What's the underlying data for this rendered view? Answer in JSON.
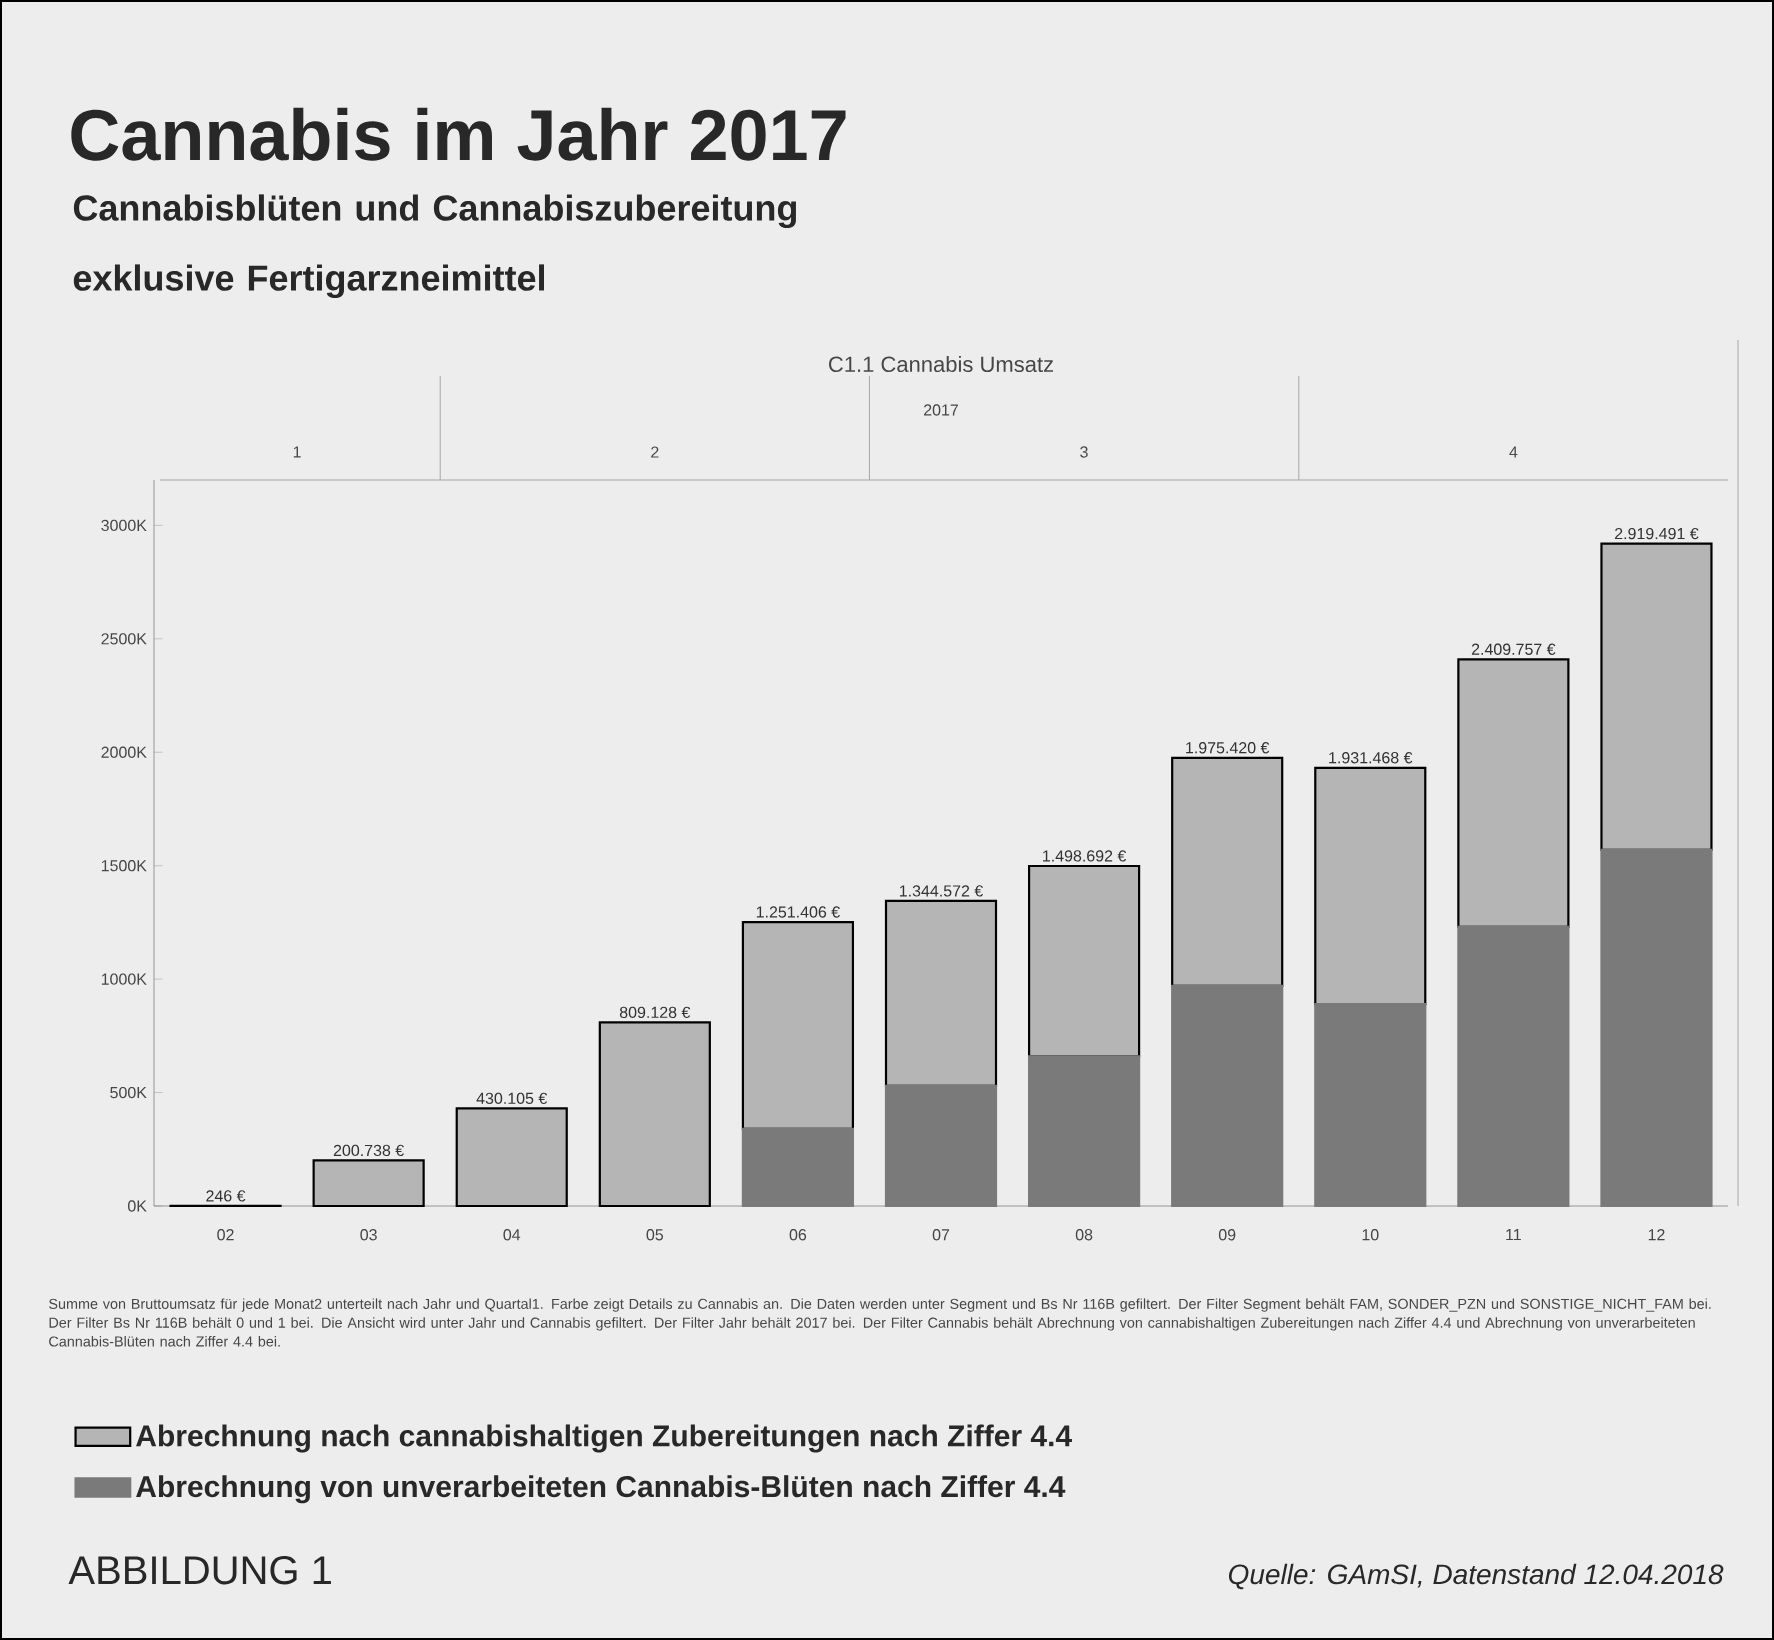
{
  "chart_data": {
    "type": "bar",
    "title": "Cannabis im Jahr 2017",
    "subtitle": "Cannabisblüten und Cannabiszubereitung exklusive Fertigarzneimittel",
    "categories": [
      "02",
      "03",
      "04",
      "05",
      "06",
      "07",
      "08",
      "09",
      "10",
      "11",
      "12"
    ],
    "stacked": true,
    "series": [
      {
        "name": "Abrechnung von unverarbeiteten Cannabis-Blüten nach Ziffer 4.4",
        "color": "#7a7a7a",
        "values": [
          0,
          0,
          0,
          0,
          340000,
          530000,
          660000,
          970000,
          890000,
          1230000,
          1570000
        ]
      },
      {
        "name": "Abrechnung nach cannabishaltigen Zubereitungen nach Ziffer 4.4",
        "color": "#b5b5b5",
        "values": [
          246,
          200738,
          430105,
          809128,
          911406,
          814572,
          838692,
          1005420,
          1041468,
          1179757,
          1349491
        ]
      }
    ],
    "totals": [
      "246 €",
      "200.738 €",
      "430.105 €",
      "809.128 €",
      "1.251.406 €",
      "1.344.572 €",
      "1.498.692 €",
      "1.975.420 €",
      "1.931.468 €",
      "2.409.757 €",
      "2.919.491 €"
    ],
    "ylim": [
      0,
      3200000
    ],
    "yticks": [
      {
        "value": 0,
        "label": "0K"
      },
      {
        "value": 500000,
        "label": "500K"
      },
      {
        "value": 1000000,
        "label": "1000K"
      },
      {
        "value": 1500000,
        "label": "1500K"
      },
      {
        "value": 2000000,
        "label": "2000K"
      },
      {
        "value": 2500000,
        "label": "2500K"
      },
      {
        "value": 3000000,
        "label": "3000K"
      }
    ],
    "legend": "bottom",
    "annotations": [
      "C1.1 Cannabis Umsatz",
      "2017",
      "1",
      "2",
      "3",
      "4",
      "Summe von Bruttoumsatz für jede Monat2 unterteilt nach Jahr und Quartal1. Farbe zeigt Details zu Cannabis an. Die Daten werden unter Segment und Bs Nr 116B gefiltert. Der Filter Segment behält FAM, SONDER_PZN und SONSTIGE_NICHT_FAM bei. Der Filter Bs Nr 116B behält 0 und 1 bei. Die Ansicht wird unter Jahr und Cannabis gefiltert. Der Filter Jahr behält 2017 bei. Der Filter Cannabis behält Abrechnung von cannabishaltigen Zubereitungen nach Ziffer 4.4 und Abrechnung von unverarbeiteten Cannabis-Blüten nach Ziffer 4.4 bei.",
      "ABBILDUNG 1",
      "Quelle: GAmSI, Datenstand 12.04.2018"
    ]
  }
}
